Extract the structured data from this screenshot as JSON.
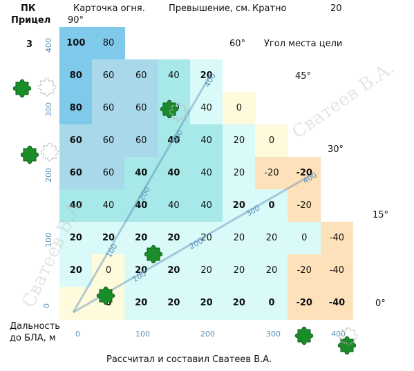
{
  "header": {
    "pk": "ПК",
    "pritsel": "Прицел",
    "pritsel_value": "3",
    "card_title": "Карточка огня.",
    "elevation_label": "Превышение, см.",
    "multiple_label": "Кратно",
    "multiple_value": "20",
    "angle_top": "90°"
  },
  "target_angle_label": "Угол места цели",
  "angles": [
    "60°",
    "45°",
    "30°",
    "15°",
    "0°"
  ],
  "footer": {
    "distance_label_1": "Дальность",
    "distance_label_2": "до БЛА, м",
    "credit": "Рассчитал и составил Сватеев В.А."
  },
  "watermark": "Сватеев В.А.",
  "colors": {
    "dark_blue": "#7fc9ea",
    "mid_blue": "#a8d8ea",
    "light_blue": "#b8e4ee",
    "teal": "#a7e8e8",
    "pale_teal": "#dafaf9",
    "cream": "#fdfbdc",
    "peach": "#fde1bb",
    "axis_blue": "#5a8fb5",
    "puzzle_green": "#1a8c2a"
  },
  "axis": {
    "y_ticks": [
      "400",
      "300",
      "200",
      "100",
      "0"
    ],
    "x_ticks": [
      "0",
      "100",
      "200",
      "300",
      "400"
    ]
  },
  "grid": {
    "rows": [
      [
        {
          "v": "100",
          "c": "dark_blue",
          "b": true
        },
        {
          "v": "80",
          "c": "dark_blue",
          "b": false
        }
      ],
      [
        {
          "v": "80",
          "c": "dark_blue",
          "b": true
        },
        {
          "v": "60",
          "c": "mid_blue",
          "b": false
        },
        {
          "v": "60",
          "c": "mid_blue",
          "b": false
        },
        {
          "v": "40",
          "c": "teal",
          "b": false
        },
        {
          "v": "20",
          "c": "pale_teal",
          "b": true
        }
      ],
      [
        {
          "v": "80",
          "c": "dark_blue",
          "b": true
        },
        {
          "v": "60",
          "c": "mid_blue",
          "b": false
        },
        {
          "v": "60",
          "c": "mid_blue",
          "b": false
        },
        {
          "v": "40",
          "c": "teal",
          "b": false
        },
        {
          "v": "40",
          "c": "pale_teal",
          "b": false
        },
        {
          "v": "0",
          "c": "cream",
          "b": false
        }
      ],
      [
        {
          "v": "60",
          "c": "mid_blue",
          "b": true
        },
        {
          "v": "60",
          "c": "mid_blue",
          "b": false
        },
        {
          "v": "60",
          "c": "mid_blue",
          "b": false
        },
        {
          "v": "40",
          "c": "teal",
          "b": true
        },
        {
          "v": "40",
          "c": "teal",
          "b": false
        },
        {
          "v": "20",
          "c": "pale_teal",
          "b": false
        },
        {
          "v": "0",
          "c": "cream",
          "b": false
        }
      ],
      [
        {
          "v": "60",
          "c": "mid_blue",
          "b": true
        },
        {
          "v": "60",
          "c": "mid_blue",
          "b": false
        },
        {
          "v": "40",
          "c": "teal",
          "b": true
        },
        {
          "v": "40",
          "c": "teal",
          "b": true
        },
        {
          "v": "40",
          "c": "teal",
          "b": false
        },
        {
          "v": "20",
          "c": "pale_teal",
          "b": false
        },
        {
          "v": "-20",
          "c": "peach",
          "b": false
        },
        {
          "v": "-20",
          "c": "peach",
          "b": true
        }
      ],
      [
        {
          "v": "40",
          "c": "teal",
          "b": true
        },
        {
          "v": "40",
          "c": "teal",
          "b": false
        },
        {
          "v": "40",
          "c": "teal",
          "b": true
        },
        {
          "v": "40",
          "c": "teal",
          "b": false
        },
        {
          "v": "40",
          "c": "teal",
          "b": false
        },
        {
          "v": "20",
          "c": "pale_teal",
          "b": true
        },
        {
          "v": "0",
          "c": "pale_teal",
          "b": true
        },
        {
          "v": "-20",
          "c": "peach",
          "b": false
        }
      ],
      [
        {
          "v": "20",
          "c": "pale_teal",
          "b": true
        },
        {
          "v": "20",
          "c": "pale_teal",
          "b": true
        },
        {
          "v": "20",
          "c": "pale_teal",
          "b": true
        },
        {
          "v": "20",
          "c": "pale_teal",
          "b": true
        },
        {
          "v": "20",
          "c": "pale_teal",
          "b": false
        },
        {
          "v": "20",
          "c": "pale_teal",
          "b": false
        },
        {
          "v": "20",
          "c": "pale_teal",
          "b": false
        },
        {
          "v": "0",
          "c": "pale_teal",
          "b": false
        },
        {
          "v": "-40",
          "c": "peach",
          "b": false
        }
      ],
      [
        {
          "v": "20",
          "c": "pale_teal",
          "b": true
        },
        {
          "v": "0",
          "c": "cream",
          "b": false
        },
        {
          "v": "20",
          "c": "pale_teal",
          "b": true
        },
        {
          "v": "20",
          "c": "pale_teal",
          "b": true
        },
        {
          "v": "20",
          "c": "pale_teal",
          "b": false
        },
        {
          "v": "20",
          "c": "pale_teal",
          "b": false
        },
        {
          "v": "20",
          "c": "pale_teal",
          "b": false
        },
        {
          "v": "-20",
          "c": "peach",
          "b": false
        },
        {
          "v": "-40",
          "c": "peach",
          "b": false
        }
      ],
      [
        {
          "v": "",
          "c": "cream",
          "b": false
        },
        {
          "v": "0",
          "c": "cream",
          "b": true
        },
        {
          "v": "20",
          "c": "pale_teal",
          "b": true
        },
        {
          "v": "20",
          "c": "pale_teal",
          "b": true
        },
        {
          "v": "20",
          "c": "pale_teal",
          "b": true
        },
        {
          "v": "20",
          "c": "pale_teal",
          "b": true
        },
        {
          "v": "0",
          "c": "pale_teal",
          "b": true
        },
        {
          "v": "-20",
          "c": "peach",
          "b": true
        },
        {
          "v": "-40",
          "c": "peach",
          "b": true
        }
      ]
    ]
  },
  "rays": [
    {
      "angle": "60°",
      "ticks": [
        "100",
        "200",
        "300",
        "400"
      ]
    },
    {
      "angle": "30°",
      "ticks": [
        "100",
        "200",
        "300",
        "400"
      ]
    }
  ]
}
